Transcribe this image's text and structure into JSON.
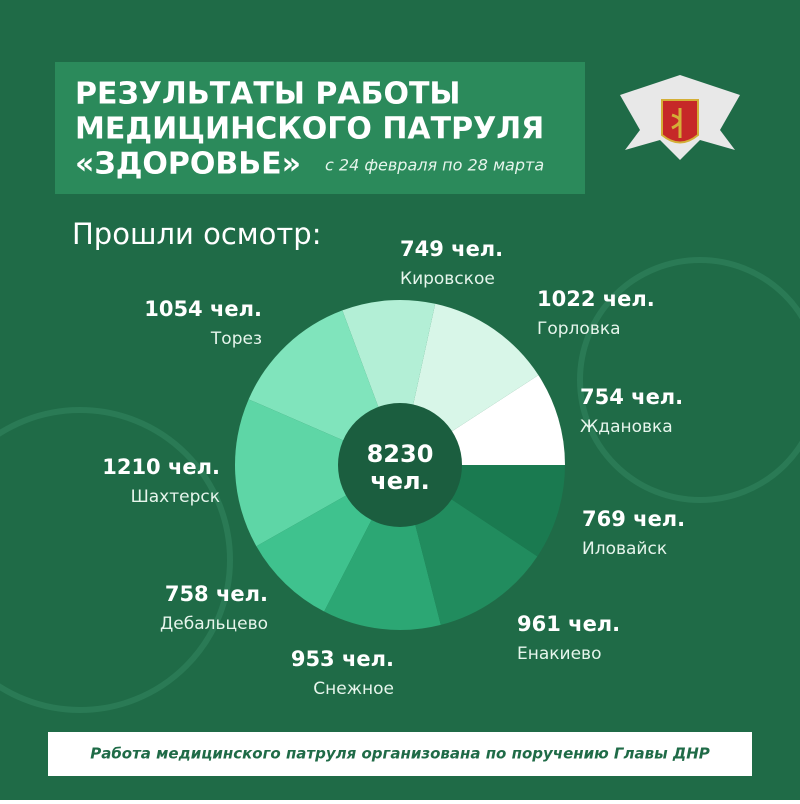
{
  "chart_data": {
    "type": "pie",
    "title_lines": [
      "РЕЗУЛЬТАТЫ РАБОТЫ",
      "МЕДИЦИНСКОГО ПАТРУЛЯ",
      "«ЗДОРОВЬЕ»"
    ],
    "subtitle": "с 24 февраля по 28 марта",
    "heading": "Прошли осмотр:",
    "categories": [
      "Ждановка",
      "Горловка",
      "Кировское",
      "Торез",
      "Шахтерск",
      "Дебальцево",
      "Снежное",
      "Енакиево",
      "Иловайск"
    ],
    "values": [
      754,
      1022,
      749,
      1054,
      1210,
      758,
      953,
      961,
      769
    ],
    "value_labels": [
      "754 чел.",
      "1022 чел.",
      "749 чел.",
      "1054 чел.",
      "1210 чел.",
      "758 чел.",
      "953 чел.",
      "961 чел.",
      "769 чел."
    ],
    "colors": [
      "#ffffff",
      "#d8f6e8",
      "#b3efd6",
      "#80e4bc",
      "#5ed6a6",
      "#3fc28e",
      "#2ca774",
      "#218c5e",
      "#1a7a50"
    ],
    "total": 8230,
    "total_unit": "чел.",
    "footer": "Работа медицинского патруля организована по поручению Главы ДНР"
  }
}
